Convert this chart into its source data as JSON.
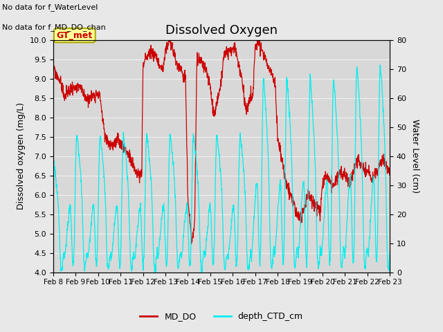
{
  "title": "Dissolved Oxygen",
  "ylabel_left": "Dissolved oxygen (mg/L)",
  "ylabel_right": "Water Level (cm)",
  "ylim_left": [
    4.0,
    10.0
  ],
  "ylim_right": [
    0,
    80
  ],
  "fig_bg": "#e8e8e8",
  "plot_bg": "#d8d8d8",
  "grid_color": "#f0f0f0",
  "text_top_left_line1": "No data for f_WaterLevel",
  "text_top_left_line2": "No data for f_MD_DO_chan",
  "legend_label1": "MD_DO",
  "legend_label2": "depth_CTD_cm",
  "line_color_do": "#cc0000",
  "line_color_depth": "#00eeee",
  "annotation_box_text": "GT_met",
  "annotation_box_facecolor": "#ffff99",
  "annotation_box_edgecolor": "#aaaa00",
  "xtick_labels": [
    "Feb 8",
    "Feb 9",
    "Feb 10",
    "Feb 11",
    "Feb 12",
    "Feb 13",
    "Feb 14",
    "Feb 15",
    "Feb 16",
    "Feb 17",
    "Feb 18",
    "Feb 19",
    "Feb 20",
    "Feb 21",
    "Feb 22",
    "Feb 23"
  ]
}
